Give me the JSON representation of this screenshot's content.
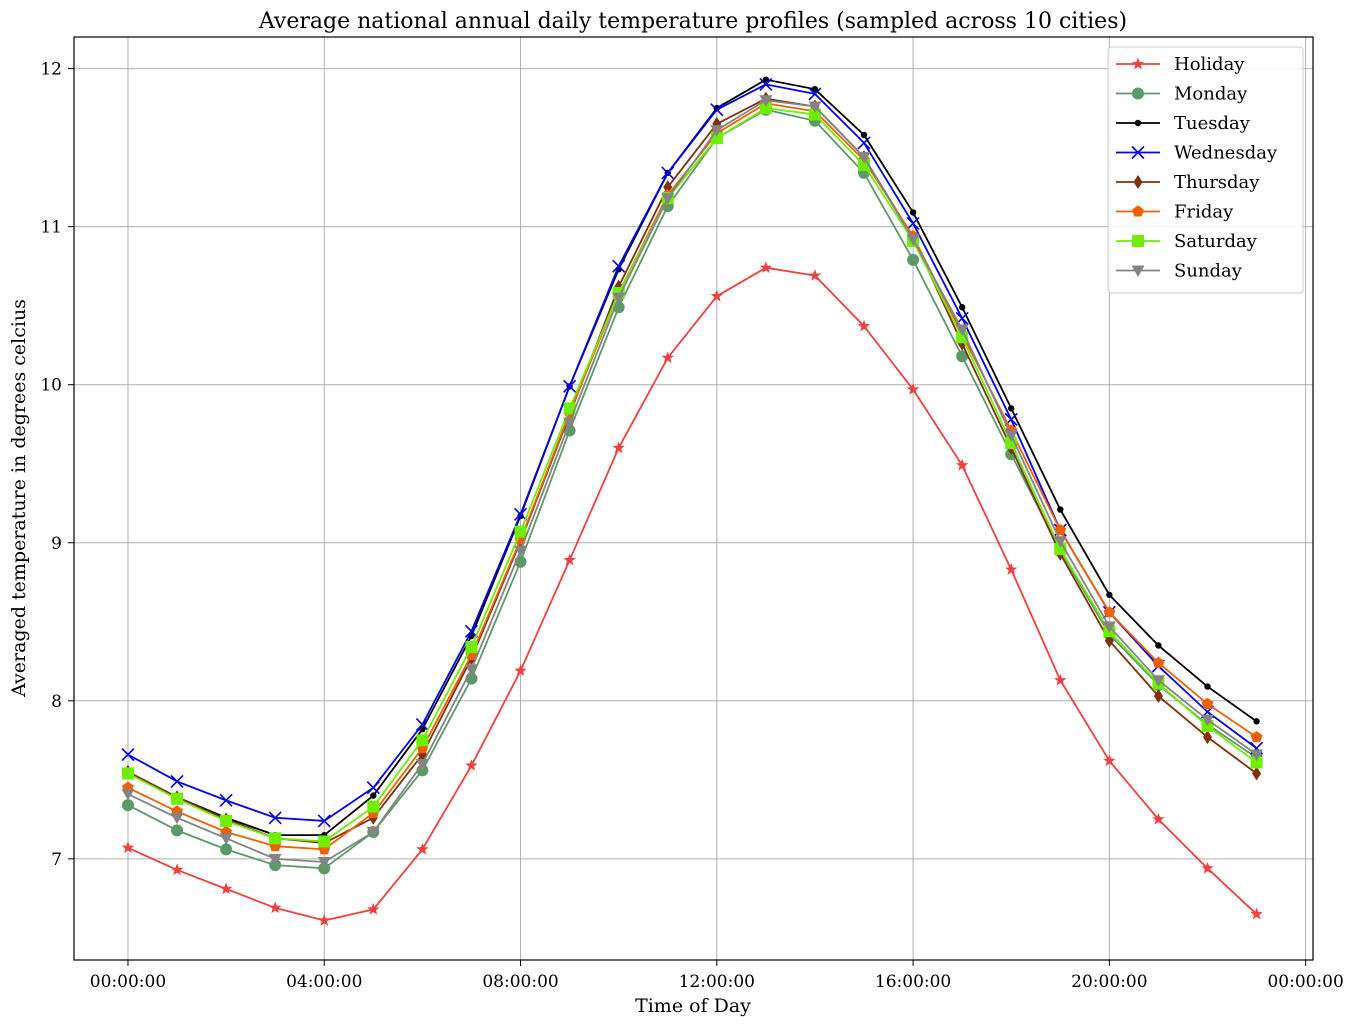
{
  "chart_data": {
    "type": "line",
    "title": "Average national annual daily temperature profiles (sampled across 10 cities)",
    "xlabel": "Time of Day",
    "ylabel": "Averaged temperature in degrees celcius",
    "x": [
      0,
      1,
      2,
      3,
      4,
      5,
      6,
      7,
      8,
      9,
      10,
      11,
      12,
      13,
      14,
      15,
      16,
      17,
      18,
      19,
      20,
      21,
      22,
      23
    ],
    "xlim": [
      -1.1,
      24.15
    ],
    "ylim": [
      6.36,
      12.2
    ],
    "xticks": [
      {
        "value": 0,
        "label": "00:00:00"
      },
      {
        "value": 4,
        "label": "04:00:00"
      },
      {
        "value": 8,
        "label": "08:00:00"
      },
      {
        "value": 12,
        "label": "12:00:00"
      },
      {
        "value": 16,
        "label": "16:00:00"
      },
      {
        "value": 20,
        "label": "20:00:00"
      },
      {
        "value": 24,
        "label": "00:00:00"
      }
    ],
    "yticks": [
      {
        "value": 7,
        "label": "7"
      },
      {
        "value": 8,
        "label": "8"
      },
      {
        "value": 9,
        "label": "9"
      },
      {
        "value": 10,
        "label": "10"
      },
      {
        "value": 11,
        "label": "11"
      },
      {
        "value": 12,
        "label": "12"
      }
    ],
    "grid": true,
    "legend_position": "top-right",
    "series": [
      {
        "name": "Holiday",
        "color": "#f04040",
        "marker": "star",
        "values": [
          7.07,
          6.93,
          6.81,
          6.69,
          6.61,
          6.68,
          7.06,
          7.59,
          8.19,
          8.89,
          9.6,
          10.17,
          10.56,
          10.74,
          10.69,
          10.37,
          9.97,
          9.49,
          8.83,
          8.13,
          7.62,
          7.25,
          6.94,
          6.65
        ]
      },
      {
        "name": "Monday",
        "color": "#5a9a68",
        "marker": "circle",
        "values": [
          7.34,
          7.18,
          7.06,
          6.96,
          6.94,
          7.17,
          7.56,
          8.14,
          8.88,
          9.71,
          10.49,
          11.13,
          11.56,
          11.74,
          11.67,
          11.34,
          10.79,
          10.18,
          9.56,
          8.95,
          8.42,
          8.1,
          7.85,
          7.64
        ]
      },
      {
        "name": "Tuesday",
        "color": "#000000",
        "marker": "point",
        "values": [
          7.55,
          7.39,
          7.26,
          7.15,
          7.15,
          7.4,
          7.82,
          8.41,
          9.17,
          9.99,
          10.73,
          11.34,
          11.75,
          11.93,
          11.87,
          11.58,
          11.09,
          10.49,
          9.85,
          9.21,
          8.67,
          8.35,
          8.09,
          7.87
        ]
      },
      {
        "name": "Wednesday",
        "color": "#0000ee",
        "marker": "x",
        "values": [
          7.66,
          7.49,
          7.37,
          7.26,
          7.24,
          7.45,
          7.85,
          8.44,
          9.18,
          9.99,
          10.75,
          11.34,
          11.74,
          11.9,
          11.84,
          11.53,
          11.02,
          10.42,
          9.78,
          9.08,
          8.56,
          8.22,
          7.93,
          7.7
        ]
      },
      {
        "name": "Thursday",
        "color": "#80300e",
        "marker": "diamond",
        "values": [
          7.55,
          7.39,
          7.25,
          7.13,
          7.1,
          7.26,
          7.66,
          8.27,
          9.01,
          9.81,
          10.62,
          11.25,
          11.65,
          11.81,
          11.76,
          11.44,
          10.93,
          10.26,
          9.6,
          8.93,
          8.38,
          8.03,
          7.77,
          7.54
        ]
      },
      {
        "name": "Friday",
        "color": "#f06000",
        "marker": "pentagon",
        "values": [
          7.45,
          7.3,
          7.17,
          7.08,
          7.06,
          7.29,
          7.7,
          8.29,
          9.02,
          9.82,
          10.58,
          11.2,
          11.59,
          11.78,
          11.73,
          11.42,
          10.94,
          10.32,
          9.71,
          9.08,
          8.56,
          8.24,
          7.98,
          7.77
        ]
      },
      {
        "name": "Saturday",
        "color": "#70ee00",
        "marker": "square",
        "values": [
          7.54,
          7.38,
          7.24,
          7.13,
          7.11,
          7.33,
          7.75,
          8.34,
          9.07,
          9.85,
          10.58,
          11.18,
          11.56,
          11.75,
          11.71,
          11.39,
          10.91,
          10.3,
          9.63,
          8.96,
          8.44,
          8.11,
          7.84,
          7.61
        ]
      },
      {
        "name": "Sunday",
        "color": "#848484",
        "marker": "triangle-down",
        "values": [
          7.41,
          7.26,
          7.13,
          7.0,
          6.98,
          7.17,
          7.6,
          8.2,
          8.95,
          9.76,
          10.55,
          11.18,
          11.61,
          11.8,
          11.76,
          11.44,
          10.92,
          10.35,
          9.68,
          9.01,
          8.47,
          8.13,
          7.88,
          7.66
        ]
      }
    ]
  }
}
